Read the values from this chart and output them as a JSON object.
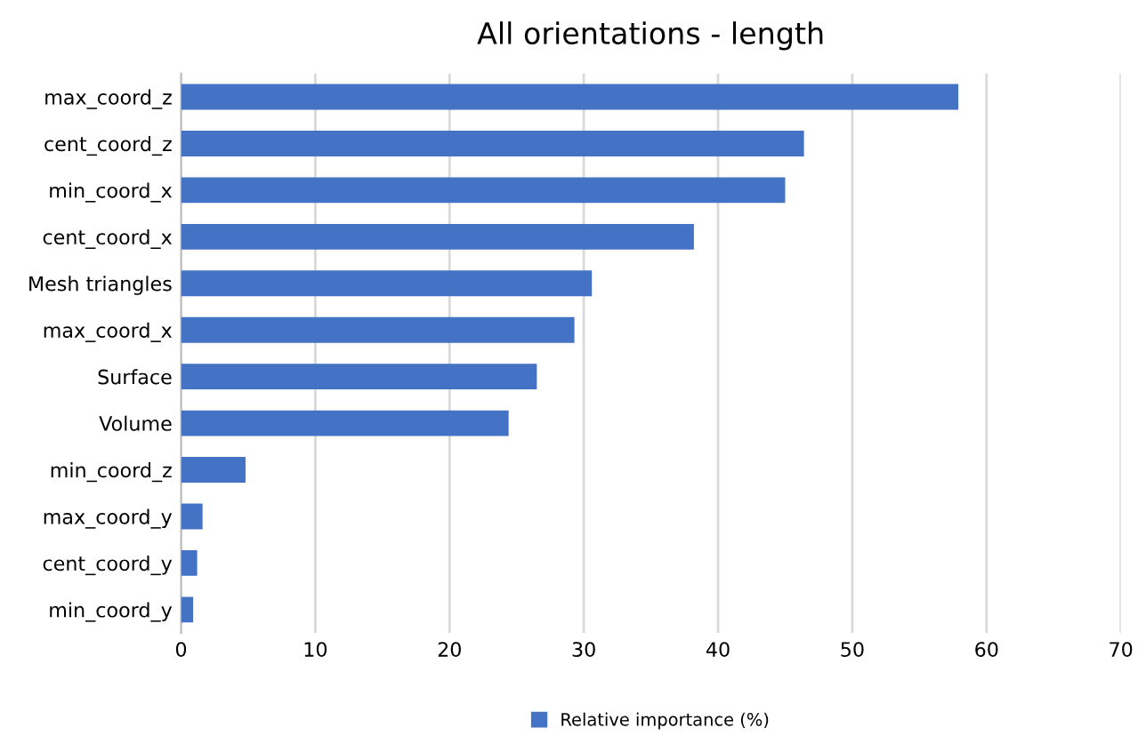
{
  "chart_data": {
    "type": "bar",
    "orientation": "horizontal",
    "title": "All orientations - length",
    "categories": [
      "max_coord_z",
      "cent_coord_z",
      "min_coord_x",
      "cent_coord_x",
      "Mesh triangles",
      "max_coord_x",
      "Surface",
      "Volume",
      "min_coord_z",
      "max_coord_y",
      "cent_coord_y",
      "min_coord_y"
    ],
    "series": [
      {
        "name": "Relative importance (%)",
        "color": "#4472c4",
        "values": [
          57.9,
          46.4,
          45.0,
          38.2,
          30.6,
          29.3,
          26.5,
          24.4,
          4.8,
          1.6,
          1.2,
          0.9
        ]
      }
    ],
    "xlim": [
      0,
      70
    ],
    "xticks": [
      0,
      10,
      20,
      30,
      40,
      50,
      60,
      70
    ],
    "grid": "x",
    "legend": "bottom"
  }
}
